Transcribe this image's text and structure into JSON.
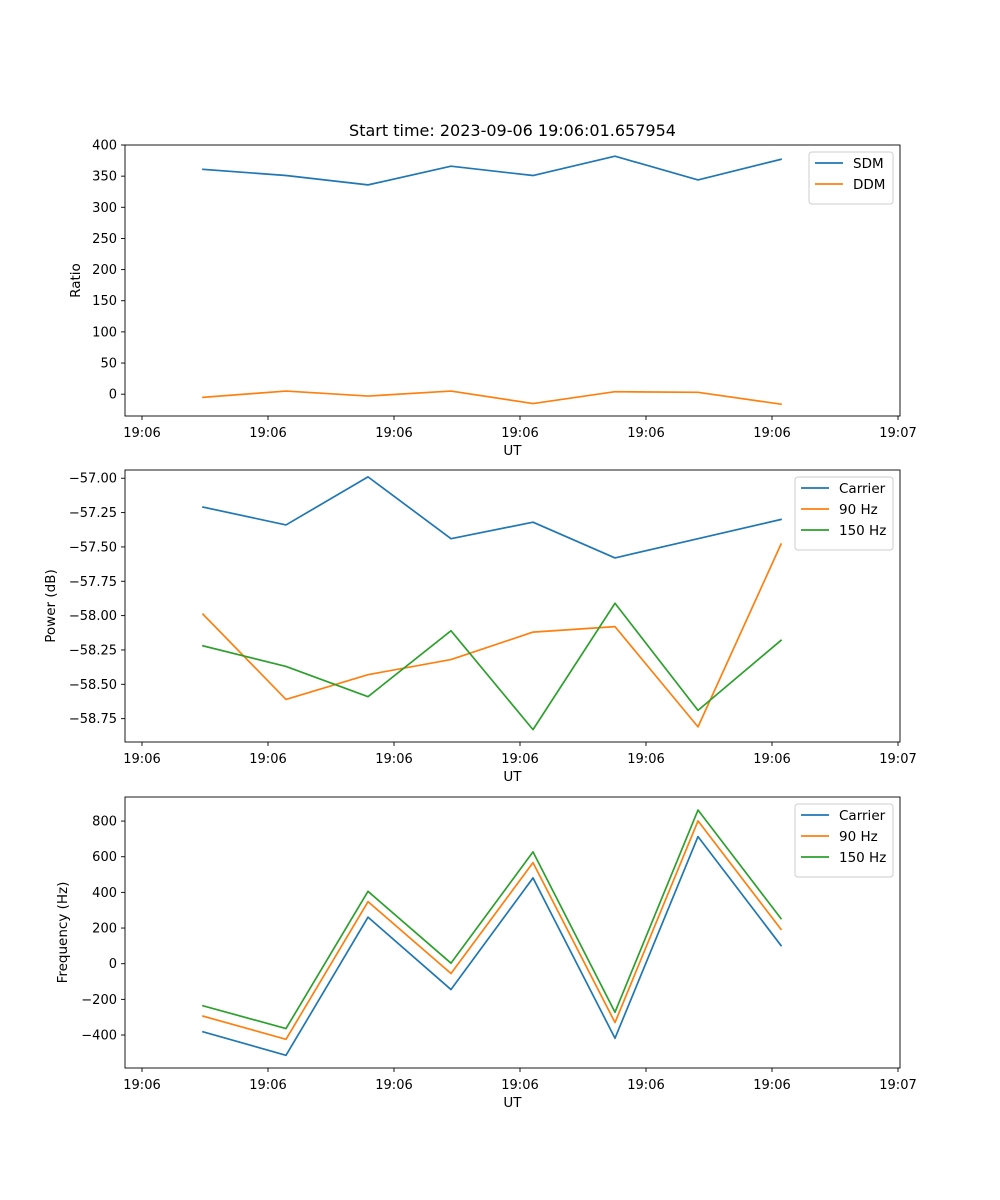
{
  "chart_data": [
    {
      "type": "line",
      "title": "Start time: 2023-09-06 19:06:01.657954",
      "xlabel": "UT",
      "ylabel": "Ratio",
      "x_tick_labels": [
        "19:06",
        "19:06",
        "19:06",
        "19:06",
        "19:06",
        "19:06",
        "19:07"
      ],
      "ylim": [
        -35,
        400
      ],
      "yticks": [
        0,
        50,
        100,
        150,
        200,
        250,
        300,
        350,
        400
      ],
      "ytick_labels": [
        "0",
        "50",
        "100",
        "150",
        "200",
        "250",
        "300",
        "350",
        "400"
      ],
      "legend_position": "top-right",
      "grid": false,
      "series": [
        {
          "name": "SDM",
          "color": "#1f77b4",
          "values": [
            361,
            351,
            336,
            366,
            351,
            382,
            344,
            377
          ]
        },
        {
          "name": "DDM",
          "color": "#ff7f0e",
          "values": [
            -5,
            5,
            -3,
            5,
            -15,
            4,
            3,
            -16
          ]
        }
      ]
    },
    {
      "type": "line",
      "title": "",
      "xlabel": "UT",
      "ylabel": "Power (dB)",
      "x_tick_labels": [
        "19:06",
        "19:06",
        "19:06",
        "19:06",
        "19:06",
        "19:06",
        "19:07"
      ],
      "ylim": [
        -58.92,
        -56.94
      ],
      "yticks": [
        -58.75,
        -58.5,
        -58.25,
        -58.0,
        -57.75,
        -57.5,
        -57.25,
        -57.0
      ],
      "ytick_labels": [
        "−58.75",
        "−58.50",
        "−58.25",
        "−58.00",
        "−57.75",
        "−57.50",
        "−57.25",
        "−57.00"
      ],
      "legend_position": "top-right",
      "grid": false,
      "series": [
        {
          "name": "Carrier",
          "color": "#1f77b4",
          "values": [
            -57.21,
            -57.34,
            -56.99,
            -57.44,
            -57.32,
            -57.58,
            -57.44,
            -57.3
          ]
        },
        {
          "name": "90 Hz",
          "color": "#ff7f0e",
          "values": [
            -57.99,
            -58.61,
            -58.43,
            -58.32,
            -58.12,
            -58.08,
            -58.81,
            -57.48
          ]
        },
        {
          "name": "150 Hz",
          "color": "#2ca02c",
          "values": [
            -58.22,
            -58.37,
            -58.59,
            -58.11,
            -58.83,
            -57.91,
            -58.69,
            -58.18
          ]
        }
      ]
    },
    {
      "type": "line",
      "title": "",
      "xlabel": "UT",
      "ylabel": "Frequency (Hz)",
      "x_tick_labels": [
        "19:06",
        "19:06",
        "19:06",
        "19:06",
        "19:06",
        "19:06",
        "19:07"
      ],
      "ylim": [
        -585,
        935
      ],
      "yticks": [
        -400,
        -200,
        0,
        200,
        400,
        600,
        800
      ],
      "ytick_labels": [
        "−400",
        "−200",
        "0",
        "200",
        "400",
        "600",
        "800"
      ],
      "legend_position": "top-right",
      "grid": false,
      "series": [
        {
          "name": "Carrier",
          "color": "#1f77b4",
          "values": [
            -382,
            -514,
            261,
            -145,
            481,
            -418,
            713,
            102
          ]
        },
        {
          "name": "90 Hz",
          "color": "#ff7f0e",
          "values": [
            -294,
            -424,
            348,
            -55,
            567,
            -330,
            801,
            193
          ]
        },
        {
          "name": "150 Hz",
          "color": "#2ca02c",
          "values": [
            -236,
            -364,
            406,
            3,
            627,
            -272,
            862,
            253
          ]
        }
      ]
    }
  ]
}
